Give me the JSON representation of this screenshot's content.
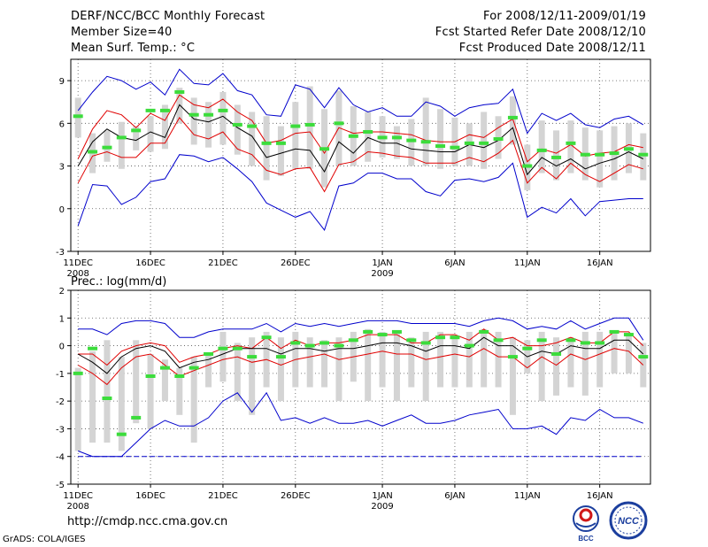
{
  "header": {
    "title": "DERF/NCC/BCC Monthly Forecast",
    "member_size": "Member Size=40",
    "variable": "Mean Surf. Temp.: °C",
    "for_range": "For 2008/12/11-2009/01/19",
    "fcst_started": "Fcst Started Refer Date 2008/12/10",
    "fcst_produced": "Fcst Produced Date 2008/12/11"
  },
  "footer": {
    "url": "http://cmdp.ncc.cma.gov.cn",
    "credit": "GrADS: COLA/IGES",
    "logo_bcc": "BCC",
    "logo_ncc": "NCC"
  },
  "colors": {
    "box": "#d4d4d4",
    "obs": "#3cdc3c",
    "mean": "#000000",
    "sd": "#e00000",
    "extreme": "#0000cc",
    "grid": "#555555"
  },
  "chart_data": [
    {
      "type": "line",
      "title": "Mean Surf. Temp.: °C",
      "ylabel": "°C",
      "ylim": [
        -3,
        10.5
      ],
      "yticks": [
        -3,
        0,
        3,
        6,
        9
      ],
      "xlim": [
        0.5,
        40.5
      ],
      "xticks": [
        {
          "day": 1,
          "label": "11DEC",
          "sub": "2008"
        },
        {
          "day": 6,
          "label": "16DEC"
        },
        {
          "day": 11,
          "label": "21DEC"
        },
        {
          "day": 16,
          "label": "26DEC"
        },
        {
          "day": 22,
          "label": "1JAN",
          "sub": "2009"
        },
        {
          "day": 27,
          "label": "6JAN"
        },
        {
          "day": 32,
          "label": "11JAN"
        },
        {
          "day": 37,
          "label": "16JAN"
        }
      ],
      "days": [
        1,
        2,
        3,
        4,
        5,
        6,
        7,
        8,
        9,
        10,
        11,
        12,
        13,
        14,
        15,
        16,
        17,
        18,
        19,
        20,
        21,
        22,
        23,
        24,
        25,
        26,
        27,
        28,
        29,
        30,
        31,
        32,
        33,
        34,
        35,
        36,
        37,
        38,
        39,
        40
      ],
      "series": [
        {
          "name": "max",
          "values": [
            -1.2,
            1.7,
            1.6,
            0.3,
            0.8,
            1.9,
            2.1,
            3.8,
            3.7,
            3.3,
            3.6,
            2.8,
            1.9,
            0.4,
            -0.1,
            -0.6,
            -0.2,
            -1.5,
            1.6,
            1.8,
            2.5,
            2.5,
            2.1,
            2.1,
            1.2,
            0.9,
            2.0,
            2.1,
            1.9,
            2.2,
            3.2,
            -0.6,
            0.1,
            -0.3,
            0.7,
            -0.5,
            0.5,
            0.6,
            0.7,
            0.7
          ]
        },
        {
          "name": "mean-sd",
          "values": [
            1.8,
            3.7,
            4.0,
            3.6,
            3.6,
            4.6,
            4.6,
            6.4,
            5.2,
            4.9,
            5.4,
            4.2,
            3.8,
            2.7,
            2.4,
            2.8,
            2.9,
            1.2,
            3.1,
            3.3,
            4.0,
            3.9,
            3.7,
            3.6,
            3.2,
            3.2,
            3.2,
            3.6,
            3.3,
            3.9,
            4.8,
            1.8,
            2.9,
            2.1,
            3.2,
            2.4,
            1.9,
            2.5,
            3.1,
            2.8
          ]
        },
        {
          "name": "mean",
          "values": [
            3.0,
            4.7,
            5.6,
            5.0,
            4.8,
            5.4,
            5.0,
            7.3,
            6.3,
            6.1,
            6.5,
            5.7,
            5.1,
            3.6,
            3.9,
            4.2,
            4.1,
            2.6,
            4.7,
            3.9,
            5.0,
            4.6,
            4.6,
            4.2,
            4.1,
            4.0,
            4.0,
            4.5,
            4.3,
            4.8,
            5.7,
            2.4,
            3.6,
            3.0,
            3.5,
            2.8,
            3.2,
            3.5,
            4.0,
            3.5
          ]
        },
        {
          "name": "mean+sd",
          "values": [
            3.5,
            5.6,
            6.9,
            6.6,
            5.7,
            6.7,
            6.2,
            8.0,
            7.3,
            7.1,
            7.7,
            6.8,
            6.2,
            4.6,
            4.8,
            5.3,
            5.4,
            3.9,
            5.7,
            5.3,
            5.4,
            5.4,
            5.3,
            5.2,
            4.8,
            4.7,
            4.7,
            5.2,
            5.0,
            5.7,
            6.3,
            3.3,
            4.2,
            3.9,
            4.5,
            3.7,
            3.9,
            4.0,
            4.5,
            4.3
          ]
        },
        {
          "name": "min",
          "values": [
            6.9,
            8.2,
            9.3,
            9.0,
            8.4,
            8.9,
            8.0,
            9.8,
            8.8,
            8.7,
            9.5,
            8.3,
            8.0,
            6.6,
            6.5,
            8.7,
            8.4,
            7.1,
            8.5,
            7.3,
            6.8,
            7.1,
            6.5,
            6.5,
            7.5,
            7.2,
            6.5,
            7.1,
            7.3,
            7.4,
            8.4,
            5.3,
            6.7,
            6.2,
            6.7,
            5.9,
            5.7,
            6.3,
            6.5,
            5.9
          ]
        },
        {
          "name": "box_low",
          "values": [
            5.0,
            2.5,
            3.3,
            2.8,
            4.1,
            4.0,
            4.2,
            6.0,
            4.5,
            4.3,
            4.5,
            3.8,
            3.0,
            2.0,
            2.3,
            2.8,
            2.8,
            1.5,
            3.0,
            3.0,
            3.3,
            3.6,
            3.5,
            3.0,
            3.0,
            2.8,
            3.0,
            3.0,
            2.8,
            3.5,
            4.5,
            1.3,
            2.5,
            2.0,
            2.5,
            2.0,
            1.5,
            2.0,
            2.5,
            2.0
          ]
        },
        {
          "name": "box_high",
          "values": [
            7.8,
            5.3,
            5.5,
            6.1,
            5.8,
            6.5,
            7.3,
            8.5,
            7.8,
            7.5,
            8.2,
            7.3,
            6.8,
            6.5,
            5.8,
            7.5,
            8.6,
            7.0,
            8.3,
            7.2,
            6.8,
            6.5,
            5.8,
            6.3,
            7.8,
            7.0,
            6.4,
            6.0,
            6.8,
            6.5,
            7.9,
            4.5,
            6.2,
            5.5,
            6.2,
            5.7,
            5.5,
            5.8,
            6.0,
            5.3
          ]
        },
        {
          "name": "observed",
          "values": [
            6.5,
            4.0,
            4.3,
            5.0,
            5.5,
            6.9,
            6.9,
            8.2,
            6.6,
            6.6,
            6.9,
            5.9,
            5.8,
            4.6,
            4.6,
            5.8,
            5.9,
            4.2,
            6.0,
            5.1,
            5.4,
            5.0,
            5.0,
            4.8,
            4.7,
            4.4,
            4.3,
            4.6,
            4.6,
            4.9,
            6.4,
            3.0,
            4.1,
            3.6,
            4.6,
            3.8,
            3.8,
            3.9,
            4.2,
            3.8
          ]
        }
      ]
    },
    {
      "type": "line",
      "title": "Prec.: log(mm/d)",
      "ylabel": "log(mm/d)",
      "ylim": [
        -5,
        2
      ],
      "yticks": [
        -5,
        -4,
        -3,
        -2,
        -1,
        0,
        1,
        2
      ],
      "xlim": [
        0.5,
        40.5
      ],
      "xticks": [
        {
          "day": 1,
          "label": "11DEC",
          "sub": "2008"
        },
        {
          "day": 6,
          "label": "16DEC"
        },
        {
          "day": 11,
          "label": "21DEC"
        },
        {
          "day": 16,
          "label": "26DEC"
        },
        {
          "day": 22,
          "label": "1JAN",
          "sub": "2009"
        },
        {
          "day": 27,
          "label": "6JAN"
        },
        {
          "day": 32,
          "label": "11JAN"
        },
        {
          "day": 37,
          "label": "16JAN"
        }
      ],
      "days": [
        1,
        2,
        3,
        4,
        5,
        6,
        7,
        8,
        9,
        10,
        11,
        12,
        13,
        14,
        15,
        16,
        17,
        18,
        19,
        20,
        21,
        22,
        23,
        24,
        25,
        26,
        27,
        28,
        29,
        30,
        31,
        32,
        33,
        34,
        35,
        36,
        37,
        38,
        39,
        40
      ],
      "series": [
        {
          "name": "max",
          "values": [
            0.6,
            0.6,
            0.4,
            0.8,
            0.9,
            0.9,
            0.8,
            0.3,
            0.3,
            0.5,
            0.6,
            0.6,
            0.6,
            0.8,
            0.5,
            0.8,
            0.7,
            0.8,
            0.7,
            0.8,
            0.9,
            0.9,
            0.9,
            0.8,
            0.8,
            0.8,
            0.8,
            0.7,
            0.9,
            1.0,
            0.9,
            0.6,
            0.7,
            0.6,
            0.9,
            0.6,
            0.8,
            1.0,
            1.0,
            0.2
          ]
        },
        {
          "name": "mean+sd",
          "values": [
            -0.3,
            -0.3,
            -0.7,
            -0.2,
            0.0,
            0.1,
            0.0,
            -0.6,
            -0.4,
            -0.3,
            -0.1,
            0.0,
            -0.1,
            0.3,
            -0.1,
            0.2,
            0.0,
            0.1,
            0.1,
            0.2,
            0.4,
            0.4,
            0.4,
            0.1,
            0.1,
            0.4,
            0.4,
            0.2,
            0.6,
            0.2,
            0.3,
            0.0,
            0.0,
            0.1,
            0.3,
            0.1,
            0.1,
            0.5,
            0.5,
            0.0
          ]
        },
        {
          "name": "mean",
          "values": [
            -0.3,
            -0.6,
            -1.0,
            -0.4,
            -0.1,
            0.0,
            -0.2,
            -0.8,
            -0.6,
            -0.5,
            -0.3,
            -0.1,
            -0.1,
            -0.1,
            -0.3,
            -0.1,
            -0.1,
            -0.2,
            -0.1,
            -0.1,
            0.0,
            0.1,
            0.1,
            0.0,
            -0.2,
            0.0,
            0.0,
            -0.1,
            0.3,
            0.0,
            0.0,
            -0.4,
            -0.2,
            -0.3,
            0.0,
            -0.1,
            -0.1,
            0.2,
            0.2,
            -0.3
          ]
        },
        {
          "name": "mean-sd",
          "values": [
            -0.7,
            -1.0,
            -1.4,
            -0.8,
            -0.4,
            -0.3,
            -0.7,
            -1.1,
            -0.9,
            -0.7,
            -0.5,
            -0.4,
            -0.6,
            -0.5,
            -0.7,
            -0.5,
            -0.4,
            -0.3,
            -0.5,
            -0.4,
            -0.3,
            -0.2,
            -0.3,
            -0.3,
            -0.5,
            -0.4,
            -0.3,
            -0.4,
            -0.1,
            -0.4,
            -0.4,
            -0.8,
            -0.4,
            -0.7,
            -0.3,
            -0.5,
            -0.3,
            -0.1,
            -0.2,
            -0.7
          ]
        },
        {
          "name": "min",
          "values": [
            -3.8,
            -4.0,
            -4.0,
            -4.0,
            -3.5,
            -3.0,
            -2.7,
            -2.9,
            -2.9,
            -2.6,
            -2.0,
            -1.7,
            -2.4,
            -1.7,
            -2.7,
            -2.6,
            -2.8,
            -2.6,
            -2.8,
            -2.8,
            -2.7,
            -2.9,
            -2.7,
            -2.5,
            -2.8,
            -2.8,
            -2.7,
            -2.5,
            -2.4,
            -2.3,
            -3.0,
            -3.0,
            -2.9,
            -3.2,
            -2.6,
            -2.7,
            -2.3,
            -2.6,
            -2.6,
            -2.8
          ]
        },
        {
          "name": "box_low",
          "values": [
            -3.8,
            -3.5,
            -3.5,
            -3.8,
            -2.8,
            -3.0,
            -2.0,
            -2.5,
            -3.5,
            -1.5,
            -1.3,
            -2.0,
            -2.5,
            -1.5,
            -2.0,
            -1.5,
            -1.5,
            -1.5,
            -2.0,
            -1.3,
            -2.0,
            -1.5,
            -2.0,
            -1.5,
            -2.0,
            -1.5,
            -1.5,
            -1.5,
            -1.5,
            -1.5,
            -2.5,
            -1.0,
            -2.0,
            -1.8,
            -1.5,
            -1.8,
            -1.5,
            -1.0,
            -1.0,
            -1.5
          ]
        },
        {
          "name": "box_high",
          "values": [
            -0.8,
            -0.2,
            0.2,
            -0.4,
            0.2,
            -0.3,
            -0.5,
            -0.8,
            -0.4,
            -0.3,
            0.5,
            0.1,
            0.3,
            0.5,
            0.3,
            0.5,
            0.3,
            0.2,
            0.3,
            0.5,
            0.6,
            0.5,
            0.5,
            0.3,
            0.5,
            0.5,
            0.4,
            0.5,
            0.6,
            0.5,
            0.3,
            0.2,
            0.5,
            0.3,
            0.3,
            0.5,
            0.5,
            0.5,
            0.4,
            0.1
          ]
        },
        {
          "name": "observed",
          "values": [
            -1.0,
            -0.1,
            -1.9,
            -3.2,
            -2.6,
            -1.1,
            -0.8,
            -1.1,
            -0.8,
            -0.3,
            -0.1,
            -0.1,
            -0.4,
            0.3,
            -0.4,
            0.1,
            0.0,
            0.1,
            0.0,
            0.2,
            0.5,
            0.4,
            0.5,
            0.2,
            0.1,
            0.3,
            0.3,
            0.0,
            0.5,
            0.2,
            -0.4,
            -0.1,
            0.2,
            -0.3,
            0.2,
            0.1,
            0.1,
            0.5,
            0.4,
            -0.4
          ]
        }
      ]
    }
  ]
}
